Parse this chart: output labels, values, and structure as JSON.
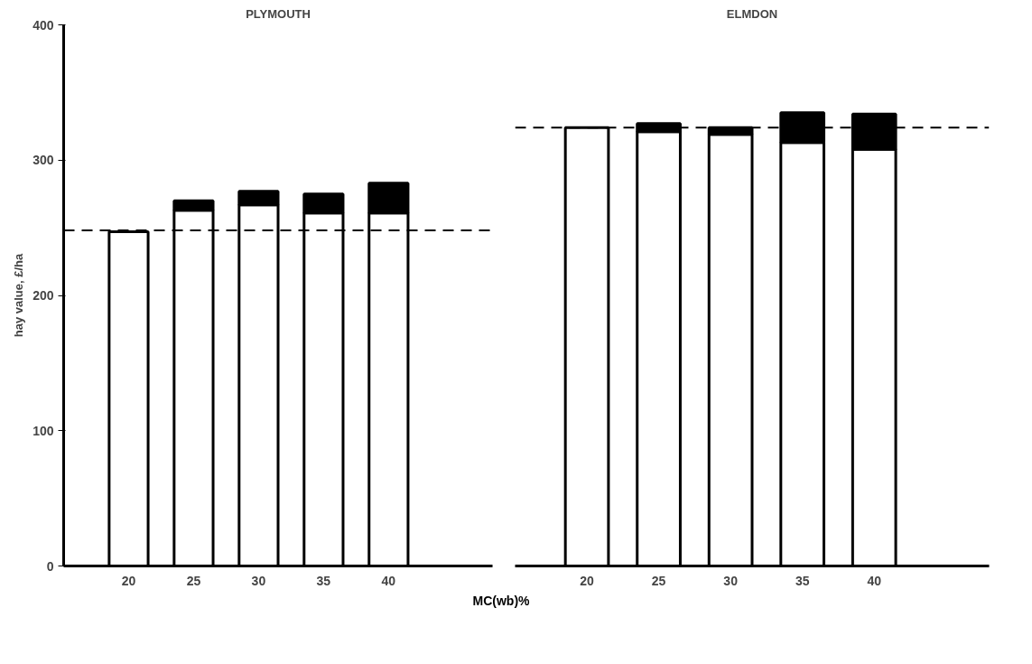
{
  "chart_data": [
    {
      "type": "bar",
      "title": "PLYMOUTH",
      "xlabel": "MC(wb)%",
      "ylabel": "hay value, £/ha",
      "categories": [
        "20",
        "25",
        "30",
        "35",
        "40"
      ],
      "stacked": true,
      "ylim": [
        0,
        400
      ],
      "yticks": [
        0,
        100,
        200,
        300,
        400
      ],
      "grid": false,
      "series": [
        {
          "color": "#ffffff",
          "values": [
            247,
            263,
            267,
            261,
            261
          ]
        },
        {
          "color": "#000000",
          "values": [
            null,
            7,
            10,
            14,
            22
          ]
        }
      ],
      "ref_lines": [
        {
          "axis": "y",
          "value": 248,
          "line_style": "dashed",
          "color": "#000000"
        }
      ]
    },
    {
      "type": "bar",
      "title": "ELMDON",
      "categories": [
        "20",
        "25",
        "30",
        "35",
        "40"
      ],
      "stacked": true,
      "ylim": [
        0,
        400
      ],
      "tick_labels": "x",
      "grid": false,
      "series": [
        {
          "color": "#ffffff",
          "values": [
            324,
            321,
            319,
            313,
            308
          ]
        },
        {
          "color": "#000000",
          "values": [
            null,
            6,
            5,
            22,
            26
          ]
        }
      ],
      "ref_lines": [
        {
          "axis": "y",
          "value": 324,
          "line_style": "dashed",
          "color": "#000000"
        }
      ]
    }
  ]
}
